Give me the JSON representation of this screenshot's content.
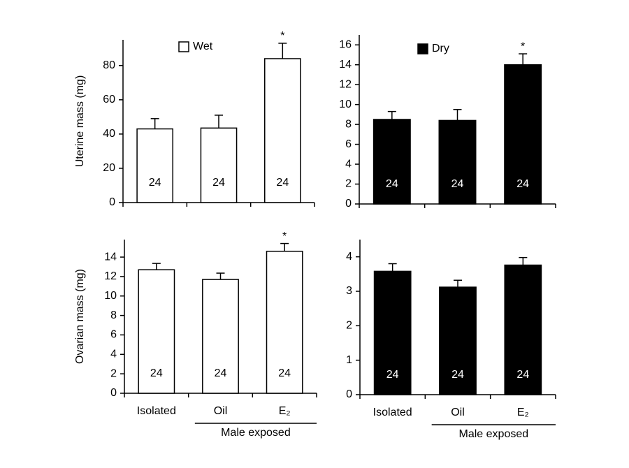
{
  "chart_data": [
    {
      "type": "bar",
      "ylabel": "Uterine mass (mg)",
      "categories": [
        null,
        null,
        null
      ],
      "series": [
        {
          "name": "Wet",
          "color": "#ffffff",
          "values": [
            43,
            43.5,
            84
          ],
          "errors": [
            6,
            7.5,
            9
          ]
        }
      ],
      "n": [
        24,
        24,
        24
      ],
      "markers": [
        null,
        null,
        "*"
      ],
      "ylim": [
        0,
        95
      ],
      "yticks": [
        0,
        20,
        40,
        60,
        80
      ]
    },
    {
      "type": "bar",
      "categories": [
        null,
        null,
        null
      ],
      "series": [
        {
          "name": "Dry",
          "color": "#000000",
          "values": [
            8.5,
            8.4,
            14.0
          ],
          "errors": [
            0.8,
            1.1,
            1.1
          ]
        }
      ],
      "n": [
        24,
        24,
        24
      ],
      "markers": [
        null,
        null,
        "*"
      ],
      "ylim": [
        0,
        17
      ],
      "yticks": [
        0,
        2,
        4,
        6,
        8,
        10,
        12,
        14,
        16
      ]
    },
    {
      "type": "bar",
      "ylabel": "Ovarian mass (mg)",
      "categories": [
        "Isolated",
        "Oil",
        "E₂"
      ],
      "group_label": "Male exposed",
      "series": [
        {
          "color": "#ffffff",
          "values": [
            12.7,
            11.7,
            14.6
          ],
          "errors": [
            0.65,
            0.65,
            0.8
          ]
        }
      ],
      "n": [
        24,
        24,
        24
      ],
      "markers": [
        null,
        null,
        "*"
      ],
      "ylim": [
        0,
        15.8
      ],
      "yticks": [
        0,
        2,
        4,
        6,
        8,
        10,
        12,
        14
      ]
    },
    {
      "type": "bar",
      "categories": [
        "Isolated",
        "Oil",
        "E₂"
      ],
      "group_label": "Male exposed",
      "series": [
        {
          "color": "#000000",
          "values": [
            3.58,
            3.12,
            3.76
          ],
          "errors": [
            0.22,
            0.2,
            0.22
          ]
        }
      ],
      "n": [
        24,
        24,
        24
      ],
      "markers": [
        null,
        null,
        null
      ],
      "ylim": [
        0,
        4.5
      ],
      "yticks": [
        0,
        1,
        2,
        3,
        4
      ]
    }
  ]
}
